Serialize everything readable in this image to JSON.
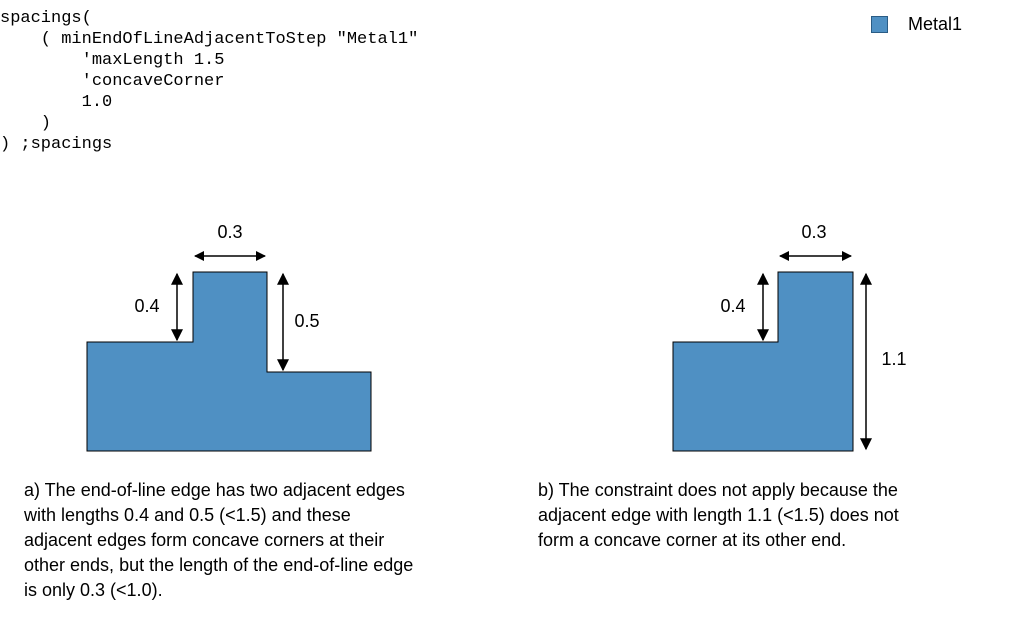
{
  "code": {
    "lines": [
      "spacings(",
      "    ( minEndOfLineAdjacentToStep \"Metal1\"",
      "        'maxLength 1.5",
      "        'concaveCorner",
      "        1.0",
      "    )",
      ") ;spacings"
    ]
  },
  "legend": {
    "label": "Metal1",
    "color": "#4f90c3"
  },
  "diagram_a": {
    "top_width": "0.3",
    "left_step": "0.4",
    "right_step": "0.5"
  },
  "diagram_b": {
    "top_width": "0.3",
    "left_step": "0.4",
    "right_height": "1.1"
  },
  "caption_a": {
    "lines": [
      "a) The end-of-line edge has two adjacent edges",
      "with lengths 0.4 and 0.5 (<1.5) and these",
      "adjacent edges form concave corners at their",
      "other ends, but the length of the end-of-line edge",
      "is only 0.3 (<1.0)."
    ]
  },
  "caption_b": {
    "lines": [
      "b) The constraint does not apply because the",
      "adjacent edge with length 1.1 (<1.5) does not",
      "form a concave corner at its other end."
    ]
  }
}
